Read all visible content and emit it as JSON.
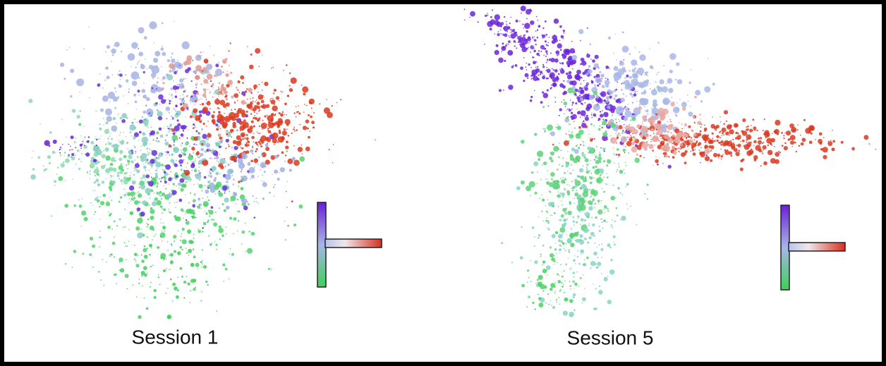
{
  "panels": [
    {
      "label": "Session 1"
    },
    {
      "label": "Session 5"
    }
  ]
}
